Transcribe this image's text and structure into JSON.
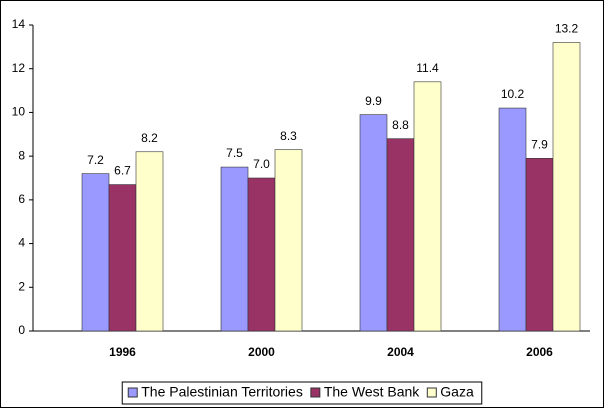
{
  "chart_data": {
    "type": "bar",
    "categories": [
      "1996",
      "2000",
      "2004",
      "2006"
    ],
    "series": [
      {
        "name": "The Palestinian Territories",
        "color": "#9999ff",
        "values": [
          7.2,
          7.5,
          9.9,
          10.2
        ],
        "value_labels": [
          "7.2",
          "7.5",
          "9.9",
          "10.2"
        ]
      },
      {
        "name": "The West Bank",
        "color": "#993366",
        "values": [
          6.7,
          7.0,
          8.8,
          7.9
        ],
        "value_labels": [
          "6.7",
          "7.0",
          "8.8",
          "7.9"
        ]
      },
      {
        "name": "Gaza",
        "color": "#ffffcc",
        "values": [
          8.2,
          8.3,
          11.4,
          13.2
        ],
        "value_labels": [
          "8.2",
          "8.3",
          "11.4",
          "13.2"
        ]
      }
    ],
    "ylim": [
      0,
      14
    ],
    "yticks": [
      0,
      2,
      4,
      6,
      8,
      10,
      12,
      14
    ],
    "grid": false,
    "legend": "bottom"
  }
}
